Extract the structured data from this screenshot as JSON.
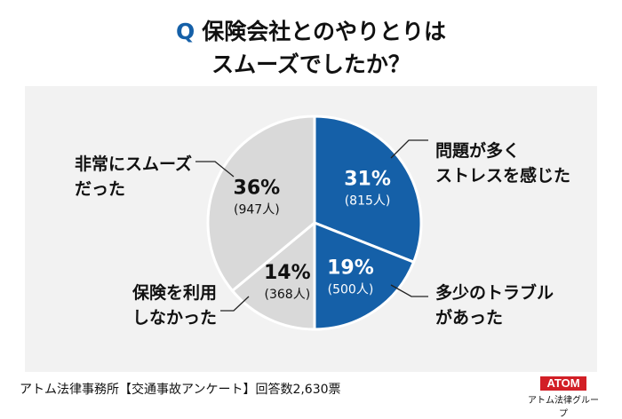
{
  "title": {
    "q": "Q",
    "line1": "保険会社とのやりとりは",
    "line2": "スムーズでしたか？"
  },
  "chart_data": {
    "type": "pie",
    "categories": [
      "問題が多く ストレスを感じた",
      "多少のトラブルがあった",
      "保険を利用しなかった",
      "非常にスムーズだった"
    ],
    "values": [
      31,
      19,
      14,
      36
    ],
    "counts": [
      815,
      500,
      368,
      947
    ],
    "pct_labels": [
      "31%",
      "19%",
      "14%",
      "36%"
    ],
    "count_labels": [
      "(815人)",
      "(500人)",
      "(368人)",
      "(947人)"
    ],
    "colors": [
      "#1560a8",
      "#1560a8",
      "#d9d9d9",
      "#d9d9d9"
    ],
    "label_lines": [
      [
        "問題が多く",
        "ストレスを感じた"
      ],
      [
        "多少のトラブル",
        "があった"
      ],
      [
        "保険を利用",
        "しなかった"
      ],
      [
        "非常にスムーズ",
        "だった"
      ]
    ]
  },
  "footer": "アトム法律事務所【交通事故アンケート】回答数2,630票",
  "logo": {
    "mark": "ATOM",
    "sub": "アトム法律グループ"
  }
}
